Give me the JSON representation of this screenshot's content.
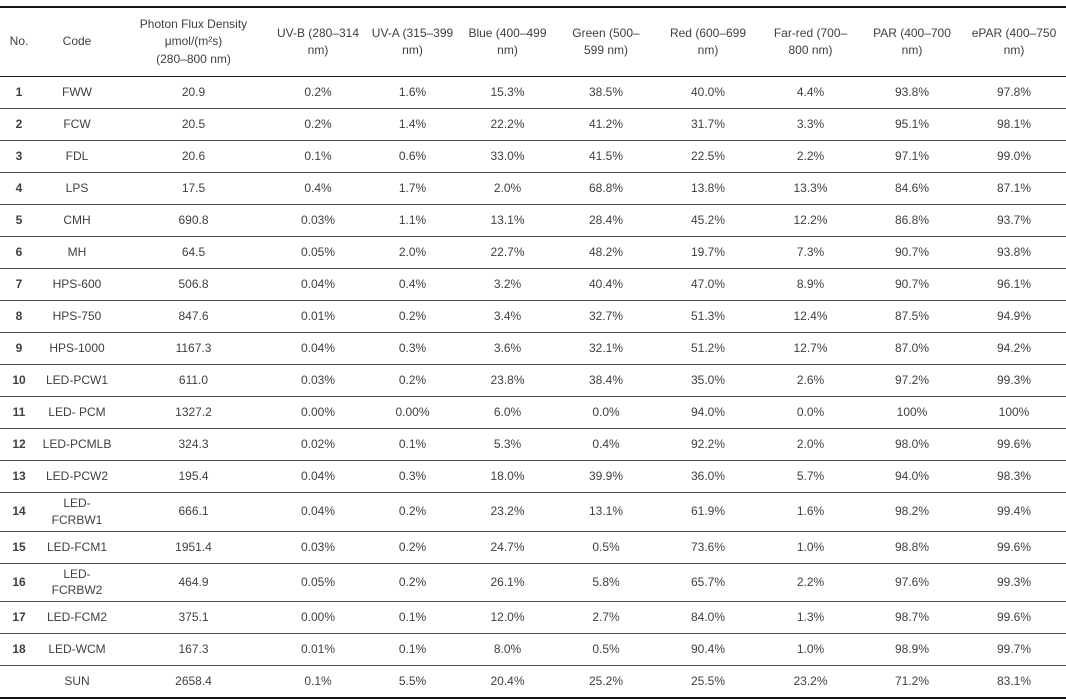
{
  "table": {
    "columns": [
      {
        "key": "no",
        "label": "No."
      },
      {
        "key": "code",
        "label": "Code"
      },
      {
        "key": "pfd",
        "label": "Photon Flux Density\nμmol/(m²s)\n(280–800 nm)"
      },
      {
        "key": "uvb",
        "label": "UV-B (280–314\nnm)"
      },
      {
        "key": "uva",
        "label": "UV-A (315–399\nnm)"
      },
      {
        "key": "blue",
        "label": "Blue (400–499\nnm)"
      },
      {
        "key": "green",
        "label": "Green (500–\n599 nm)"
      },
      {
        "key": "red",
        "label": "Red (600–699\nnm)"
      },
      {
        "key": "farred",
        "label": "Far-red (700–\n800 nm)"
      },
      {
        "key": "par",
        "label": "PAR (400–700\nnm)"
      },
      {
        "key": "epar",
        "label": "ePAR (400–750\nnm)"
      }
    ],
    "rows": [
      {
        "no": "1",
        "code": "FWW",
        "pfd": "20.9",
        "uvb": "0.2%",
        "uva": "1.6%",
        "blue": "15.3%",
        "green": "38.5%",
        "red": "40.0%",
        "farred": "4.4%",
        "par": "93.8%",
        "epar": "97.8%"
      },
      {
        "no": "2",
        "code": "FCW",
        "pfd": "20.5",
        "uvb": "0.2%",
        "uva": "1.4%",
        "blue": "22.2%",
        "green": "41.2%",
        "red": "31.7%",
        "farred": "3.3%",
        "par": "95.1%",
        "epar": "98.1%"
      },
      {
        "no": "3",
        "code": "FDL",
        "pfd": "20.6",
        "uvb": "0.1%",
        "uva": "0.6%",
        "blue": "33.0%",
        "green": "41.5%",
        "red": "22.5%",
        "farred": "2.2%",
        "par": "97.1%",
        "epar": "99.0%"
      },
      {
        "no": "4",
        "code": "LPS",
        "pfd": "17.5",
        "uvb": "0.4%",
        "uva": "1.7%",
        "blue": "2.0%",
        "green": "68.8%",
        "red": "13.8%",
        "farred": "13.3%",
        "par": "84.6%",
        "epar": "87.1%"
      },
      {
        "no": "5",
        "code": "CMH",
        "pfd": "690.8",
        "uvb": "0.03%",
        "uva": "1.1%",
        "blue": "13.1%",
        "green": "28.4%",
        "red": "45.2%",
        "farred": "12.2%",
        "par": "86.8%",
        "epar": "93.7%"
      },
      {
        "no": "6",
        "code": "MH",
        "pfd": "64.5",
        "uvb": "0.05%",
        "uva": "2.0%",
        "blue": "22.7%",
        "green": "48.2%",
        "red": "19.7%",
        "farred": "7.3%",
        "par": "90.7%",
        "epar": "93.8%"
      },
      {
        "no": "7",
        "code": "HPS-600",
        "pfd": "506.8",
        "uvb": "0.04%",
        "uva": "0.4%",
        "blue": "3.2%",
        "green": "40.4%",
        "red": "47.0%",
        "farred": "8.9%",
        "par": "90.7%",
        "epar": "96.1%"
      },
      {
        "no": "8",
        "code": "HPS-750",
        "pfd": "847.6",
        "uvb": "0.01%",
        "uva": "0.2%",
        "blue": "3.4%",
        "green": "32.7%",
        "red": "51.3%",
        "farred": "12.4%",
        "par": "87.5%",
        "epar": "94.9%"
      },
      {
        "no": "9",
        "code": "HPS-1000",
        "pfd": "1167.3",
        "uvb": "0.04%",
        "uva": "0.3%",
        "blue": "3.6%",
        "green": "32.1%",
        "red": "51.2%",
        "farred": "12.7%",
        "par": "87.0%",
        "epar": "94.2%"
      },
      {
        "no": "10",
        "code": "LED-PCW1",
        "pfd": "611.0",
        "uvb": "0.03%",
        "uva": "0.2%",
        "blue": "23.8%",
        "green": "38.4%",
        "red": "35.0%",
        "farred": "2.6%",
        "par": "97.2%",
        "epar": "99.3%"
      },
      {
        "no": "11",
        "code": "LED- PCM",
        "pfd": "1327.2",
        "uvb": "0.00%",
        "uva": "0.00%",
        "blue": "6.0%",
        "green": "0.0%",
        "red": "94.0%",
        "farred": "0.0%",
        "par": "100%",
        "epar": "100%"
      },
      {
        "no": "12",
        "code": "LED-PCMLB",
        "pfd": "324.3",
        "uvb": "0.02%",
        "uva": "0.1%",
        "blue": "5.3%",
        "green": "0.4%",
        "red": "92.2%",
        "farred": "2.0%",
        "par": "98.0%",
        "epar": "99.6%"
      },
      {
        "no": "13",
        "code": "LED-PCW2",
        "pfd": "195.4",
        "uvb": "0.04%",
        "uva": "0.3%",
        "blue": "18.0%",
        "green": "39.9%",
        "red": "36.0%",
        "farred": "5.7%",
        "par": "94.0%",
        "epar": "98.3%"
      },
      {
        "no": "14",
        "code": "LED-FCRBW1",
        "pfd": "666.1",
        "uvb": "0.04%",
        "uva": "0.2%",
        "blue": "23.2%",
        "green": "13.1%",
        "red": "61.9%",
        "farred": "1.6%",
        "par": "98.2%",
        "epar": "99.4%"
      },
      {
        "no": "15",
        "code": "LED-FCM1",
        "pfd": "1951.4",
        "uvb": "0.03%",
        "uva": "0.2%",
        "blue": "24.7%",
        "green": "0.5%",
        "red": "73.6%",
        "farred": "1.0%",
        "par": "98.8%",
        "epar": "99.6%"
      },
      {
        "no": "16",
        "code": "LED-FCRBW2",
        "pfd": "464.9",
        "uvb": "0.05%",
        "uva": "0.2%",
        "blue": "26.1%",
        "green": "5.8%",
        "red": "65.7%",
        "farred": "2.2%",
        "par": "97.6%",
        "epar": "99.3%"
      },
      {
        "no": "17",
        "code": "LED-FCM2",
        "pfd": "375.1",
        "uvb": "0.00%",
        "uva": "0.1%",
        "blue": "12.0%",
        "green": "2.7%",
        "red": "84.0%",
        "farred": "1.3%",
        "par": "98.7%",
        "epar": "99.6%"
      },
      {
        "no": "18",
        "code": "LED-WCM",
        "pfd": "167.3",
        "uvb": "0.01%",
        "uva": "0.1%",
        "blue": "8.0%",
        "green": "0.5%",
        "red": "90.4%",
        "farred": "1.0%",
        "par": "98.9%",
        "epar": "99.7%"
      },
      {
        "no": "",
        "code": "SUN",
        "pfd": "2658.4",
        "uvb": "0.1%",
        "uva": "5.5%",
        "blue": "20.4%",
        "green": "25.2%",
        "red": "25.5%",
        "farred": "23.2%",
        "par": "71.2%",
        "epar": "83.1%"
      }
    ]
  }
}
